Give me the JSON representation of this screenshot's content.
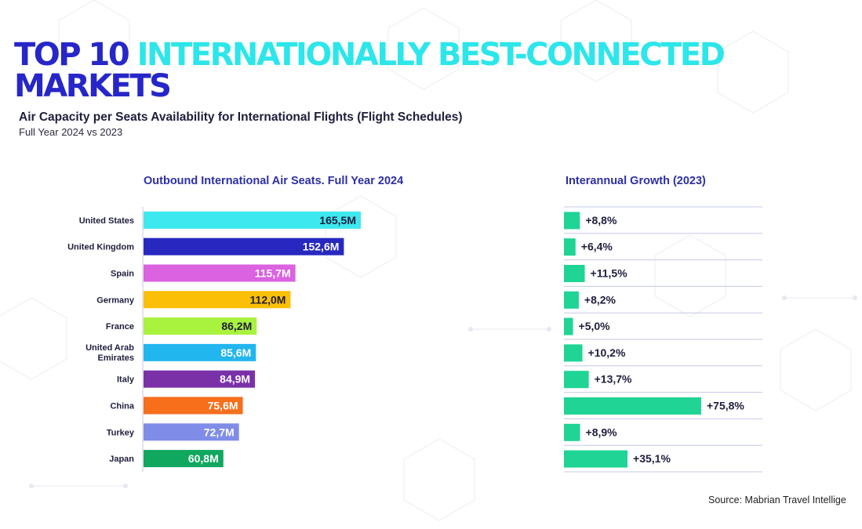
{
  "header": {
    "title_part1": "TOP 10",
    "title_part2": "INTERNATIONALLY BEST-CONNECTED",
    "title_part3": "MARKETS",
    "subtitle": "Air Capacity per Seats Availability for International Flights (Flight Schedules)",
    "period": "Full Year 2024 vs 2023"
  },
  "colors": {
    "title_accent": "#2ce6ea",
    "title_dark": "#2626c9",
    "heading": "#2d2fa6",
    "growth_bar": "#1fd495"
  },
  "source": "Source: Mabrian Travel Intellige",
  "chart_data": [
    {
      "type": "bar",
      "orientation": "horizontal",
      "title": "Outbound International Air Seats. Full Year 2024",
      "unit": "M",
      "categories": [
        "United States",
        "United Kingdom",
        "Spain",
        "Germany",
        "France",
        "United Arab Emirates",
        "Italy",
        "China",
        "Turkey",
        "Japan"
      ],
      "values": [
        165.5,
        152.6,
        115.7,
        112.0,
        86.2,
        85.6,
        84.9,
        75.6,
        72.7,
        60.8
      ],
      "labels": [
        "165,5M",
        "152,6M",
        "115,7M",
        "112,0M",
        "86,2M",
        "85,6M",
        "84,9M",
        "75,6M",
        "72,7M",
        "60,8M"
      ],
      "bar_colors": [
        "#3ee8ef",
        "#2828c0",
        "#db62e0",
        "#fbbf07",
        "#a9f23e",
        "#22b6ee",
        "#7a31a8",
        "#f76e1b",
        "#7f8ce8",
        "#10a75e"
      ],
      "xlim": [
        0,
        220
      ]
    },
    {
      "type": "bar",
      "orientation": "horizontal",
      "title": "Interannual Growth (2023)",
      "unit": "%",
      "categories": [
        "United States",
        "United Kingdom",
        "Spain",
        "Germany",
        "France",
        "United Arab Emirates",
        "Italy",
        "China",
        "Turkey",
        "Japan"
      ],
      "values": [
        8.8,
        6.4,
        11.5,
        8.2,
        5.0,
        10.2,
        13.7,
        75.8,
        8.9,
        35.1
      ],
      "labels": [
        "+8,8%",
        "+6,4%",
        "+11,5%",
        "+8,2%",
        "+5,0%",
        "+10,2%",
        "+13,7%",
        "+75,8%",
        "+8,9%",
        "+35,1%"
      ],
      "bar_color": "#1fd495",
      "xlim": [
        0,
        110
      ]
    }
  ]
}
